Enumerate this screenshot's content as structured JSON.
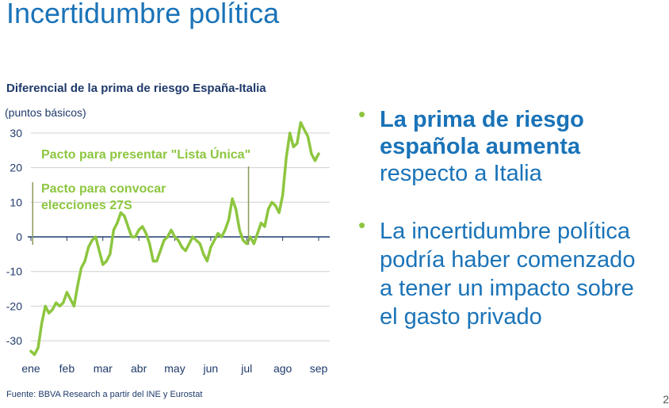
{
  "slide": {
    "title": "Incertidumbre política",
    "source": "Fuente: BBVA Research  a partir del INE  y Eurostat",
    "page_number": "2"
  },
  "bullets": [
    {
      "strong_lines": [
        "La prima de riesgo",
        "española aumenta"
      ],
      "rest": "respecto a Italia"
    },
    {
      "lines": [
        "La incertidumbre política",
        "podría haber comenzado",
        "a tener un impacto sobre",
        "el gasto privado"
      ]
    }
  ],
  "colors": {
    "title": "#1a73b8",
    "bullet_text": "#1a73b8",
    "bullet_marker": "#8dc63f",
    "series": "#8dc63f",
    "annotation": "#8dc63f",
    "axis_text": "#1f3a6b",
    "zero_line": "#1f3a6b",
    "gridline": "#d0d0d0"
  },
  "chart_data": {
    "type": "line",
    "title": "Diferencial de la prima de riesgo España-Italia",
    "ylabel": "(puntos básicos)",
    "ylim": [
      -35,
      35
    ],
    "yticks": [
      30,
      20,
      10,
      0,
      -10,
      -20,
      -30
    ],
    "grid": true,
    "months": [
      "ene",
      "feb",
      "mar",
      "abr",
      "may",
      "jun",
      "jul",
      "ago",
      "sep"
    ],
    "series": [
      {
        "x": [
          0,
          0.1,
          0.2,
          0.3,
          0.4,
          0.5,
          0.6,
          0.7,
          0.8,
          0.9,
          1.0,
          1.1,
          1.2,
          1.3,
          1.4,
          1.5,
          1.6,
          1.7,
          1.8,
          1.9,
          2.0,
          2.1,
          2.2,
          2.3,
          2.4,
          2.5,
          2.6,
          2.7,
          2.8,
          2.9,
          3.0,
          3.1,
          3.2,
          3.3,
          3.4,
          3.5,
          3.6,
          3.7,
          3.8,
          3.9,
          4.0,
          4.1,
          4.2,
          4.3,
          4.4,
          4.5,
          4.6,
          4.7,
          4.8,
          4.9,
          5.0,
          5.1,
          5.2,
          5.3,
          5.4,
          5.5,
          5.6,
          5.7,
          5.8,
          5.9,
          6.0,
          6.1,
          6.2,
          6.3,
          6.4,
          6.5,
          6.6,
          6.7,
          6.8,
          6.9,
          7.0,
          7.1,
          7.2,
          7.3,
          7.4,
          7.5,
          7.6,
          7.7,
          7.8,
          7.9,
          8.0
        ],
        "values": [
          -33,
          -34,
          -32,
          -25,
          -20,
          -22,
          -21,
          -19,
          -20,
          -19,
          -16,
          -18,
          -20,
          -14,
          -9,
          -7,
          -3,
          -1,
          0,
          -4,
          -8,
          -7,
          -5,
          2,
          4,
          7,
          6,
          3,
          0,
          0,
          2,
          3,
          1,
          -2,
          -7,
          -7,
          -4,
          -1,
          0,
          2,
          0,
          -1,
          -3,
          -4,
          -2,
          0,
          -1,
          -2,
          -5,
          -7,
          -3,
          -1,
          1,
          0,
          2,
          5,
          11,
          8,
          2,
          -1,
          -2,
          0,
          -2,
          1,
          4,
          3,
          8,
          10,
          9,
          7,
          12,
          23,
          30,
          26,
          27,
          33,
          31,
          29,
          24,
          22,
          24
        ]
      }
    ],
    "annotations": [
      {
        "label": "Pacto para presentar \"Lista Única\"",
        "x": 6.05
      },
      {
        "label_lines": [
          "Pacto para convocar",
          "elecciones 27S"
        ],
        "x": 0.05
      }
    ]
  }
}
